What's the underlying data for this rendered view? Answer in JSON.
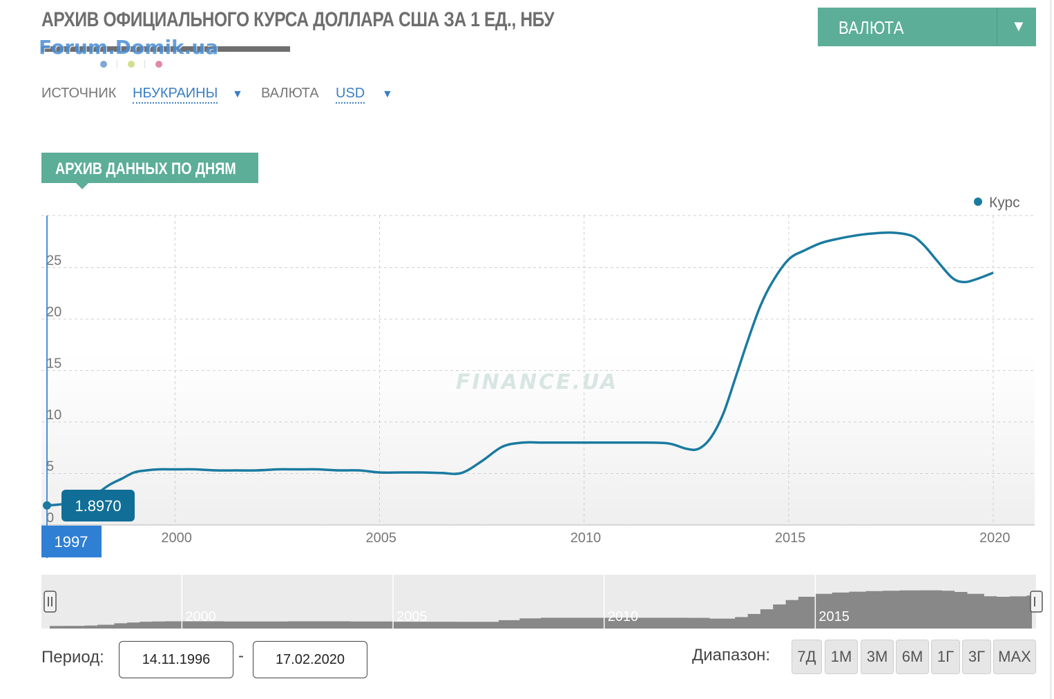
{
  "page": {
    "title": "АРХИВ ОФИЦИАЛЬНОГО КУРСА ДОЛЛАРА США ЗА 1 ЕД., НБУ",
    "watermark": "Forum.Domik.ua"
  },
  "currency_dropdown": {
    "label": "ВАЛЮТА",
    "arrow": "▼"
  },
  "filters": {
    "source_label": "ИСТОЧНИК",
    "source_value": "НБУКРАИНЫ",
    "currency_label": "ВАЛЮТА",
    "currency_value": "USD",
    "arrow": "▼"
  },
  "section_tab": {
    "label": "АРХИВ ДАННЫХ ПО ДНЯМ"
  },
  "chart_watermark": "FINANCE.UA",
  "tooltip": {
    "value": "1.8970",
    "x_label": "1997"
  },
  "navigator": {
    "labels": [
      "2000",
      "2005",
      "2010",
      "2015"
    ]
  },
  "period": {
    "label": "Период:",
    "from": "14.11.1996",
    "to": "17.02.2020",
    "separator": "-"
  },
  "range": {
    "label": "Диапазон:",
    "buttons": [
      "7Д",
      "1М",
      "3М",
      "6М",
      "1Г",
      "3Г",
      "MAX"
    ]
  },
  "colors": {
    "accent": "#5dae99",
    "line": "#1a7aa0",
    "tooltip": "#116f97",
    "xlabel_bg": "#2f80d5"
  },
  "chart_data": {
    "type": "line",
    "title": "АРХИВ ОФИЦИАЛЬНОГО КУРСА ДОЛЛАРА США ЗА 1 ЕД., НБУ",
    "xlabel": "",
    "ylabel": "",
    "legend": [
      "Курс"
    ],
    "legend_position": "top-right",
    "grid": true,
    "x_ticks": [
      "2000",
      "2005",
      "2010",
      "2015",
      "2020"
    ],
    "y_ticks": [
      "0",
      "5",
      "10",
      "15",
      "20",
      "25"
    ],
    "xlim": [
      1996.87,
      2021.0
    ],
    "ylim": [
      0,
      30
    ],
    "series": [
      {
        "name": "Курс",
        "x": [
          1996.87,
          1997.2,
          1997.7,
          1998.0,
          1998.4,
          1998.7,
          1999.0,
          1999.3,
          1999.6,
          2000.0,
          2000.5,
          2001.0,
          2001.5,
          2002.0,
          2002.5,
          2003.0,
          2003.5,
          2004.0,
          2004.5,
          2005.0,
          2005.5,
          2006.0,
          2006.5,
          2007.0,
          2007.5,
          2008.0,
          2008.5,
          2009.0,
          2010.0,
          2011.0,
          2012.0,
          2012.5,
          2012.8,
          2013.1,
          2013.4,
          2013.7,
          2014.0,
          2014.3,
          2014.6,
          2015.0,
          2015.4,
          2015.8,
          2016.2,
          2016.6,
          2017.0,
          2017.5,
          2018.0,
          2018.3,
          2018.6,
          2019.0,
          2019.3,
          2019.6,
          2020.0
        ],
        "values": [
          1.897,
          2.0,
          2.25,
          2.8,
          3.9,
          4.5,
          5.1,
          5.3,
          5.4,
          5.4,
          5.4,
          5.3,
          5.3,
          5.3,
          5.4,
          5.4,
          5.4,
          5.3,
          5.3,
          5.1,
          5.1,
          5.1,
          5.05,
          5.05,
          6.2,
          7.6,
          8.0,
          8.0,
          8.0,
          8.0,
          7.95,
          7.4,
          7.4,
          8.5,
          10.8,
          14.3,
          17.9,
          21.2,
          23.6,
          25.8,
          26.7,
          27.4,
          27.8,
          28.1,
          28.3,
          28.4,
          28.1,
          27.2,
          25.8,
          24.0,
          23.6,
          23.9,
          24.5
        ]
      }
    ]
  }
}
